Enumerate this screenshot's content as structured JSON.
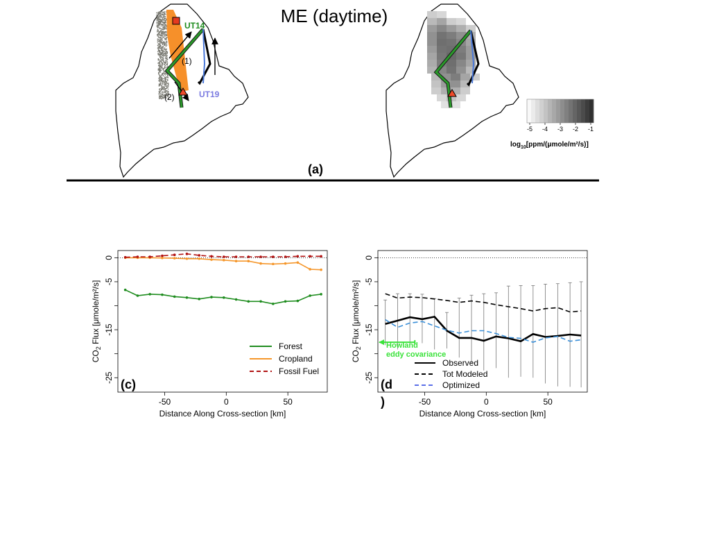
{
  "header": {
    "title": "ME (daytime)",
    "panel_a_label": "(a)"
  },
  "maps": {
    "left_labels": {
      "track1": "UT14",
      "track2": "UT19",
      "arrow1": "(1)",
      "arrow2": "(2)"
    },
    "colorbar": {
      "ticks": [
        "-5",
        "-4",
        "-3",
        "-2",
        "-1"
      ],
      "label": "log10[ppm/(μmole/m²/s)]",
      "label_parts": {
        "pre": "log",
        "sub": "10",
        "post": "[ppm/(μmole/m²/s)]"
      }
    },
    "colors": {
      "forest_track": "#1e8c1e",
      "blue_track": "#4a78d8",
      "cropland": "#f58a1f",
      "scatter": "#7a7a72",
      "marker_square": "#e53a1f",
      "marker_triangle": "#ef4a2a"
    }
  },
  "chart_data": [
    {
      "type": "line",
      "panel": "(c)",
      "xlabel": "Distance Along Cross-section [km]",
      "ylabel": "CO2 Flux [μmole/m²/s]",
      "ylabel_parts": {
        "pre": "CO",
        "sub": "2",
        "post": " Flux [μmole/m²/s]"
      },
      "xlim": [
        -88,
        82
      ],
      "ylim": [
        -28,
        1.5
      ],
      "xticks": [
        -50,
        0,
        50
      ],
      "yticks": [
        0,
        -5,
        -10,
        -15,
        -20,
        -25
      ],
      "ytick_labels": [
        "0",
        "-5",
        "",
        "-15",
        "",
        "-25"
      ],
      "x": [
        -82,
        -72,
        -62,
        -52,
        -42,
        -32,
        -22,
        -12,
        -2,
        8,
        18,
        28,
        38,
        48,
        58,
        68,
        77
      ],
      "series": [
        {
          "name": "Forest",
          "color": "#1e8c1e",
          "dash": "solid",
          "values": [
            -6.7,
            -7.9,
            -7.6,
            -7.7,
            -8.1,
            -8.3,
            -8.6,
            -8.2,
            -8.3,
            -8.7,
            -9.1,
            -9.1,
            -9.6,
            -9.1,
            -9.0,
            -7.9,
            -7.6
          ]
        },
        {
          "name": "Cropland",
          "color": "#f5962a",
          "dash": "solid",
          "values": [
            0.0,
            0.0,
            0.0,
            -0.05,
            -0.1,
            -0.2,
            -0.2,
            -0.4,
            -0.5,
            -0.7,
            -0.7,
            -1.2,
            -1.3,
            -1.2,
            -1.0,
            -2.4,
            -2.5
          ]
        },
        {
          "name": "Fossil Fuel",
          "color": "#b01010",
          "dash": "dashed",
          "values": [
            0.1,
            0.2,
            0.2,
            0.4,
            0.6,
            0.8,
            0.5,
            0.3,
            0.2,
            0.2,
            0.2,
            0.2,
            0.2,
            0.2,
            0.3,
            0.3,
            0.3
          ]
        }
      ]
    },
    {
      "type": "line",
      "panel": "(d",
      "panel_extra": ")",
      "xlabel": "Distance Along Cross-section [km]",
      "ylabel": "CO2 Flux [μmole/m²/s]",
      "ylabel_parts": {
        "pre": "CO",
        "sub": "2",
        "post": " Flux [μmole/m²/s]"
      },
      "xlim": [
        -88,
        82
      ],
      "ylim": [
        -28,
        1.5
      ],
      "xticks": [
        -50,
        0,
        50
      ],
      "yticks": [
        0,
        -5,
        -10,
        -15,
        -20,
        -25
      ],
      "ytick_labels": [
        "0",
        "-5",
        "",
        "-15",
        "",
        "-25"
      ],
      "x": [
        -82,
        -72,
        -62,
        -52,
        -42,
        -32,
        -22,
        -12,
        -2,
        8,
        18,
        28,
        38,
        48,
        58,
        68,
        77
      ],
      "series": [
        {
          "name": "Observed",
          "color": "#000000",
          "dash": "solid",
          "width": 2.6,
          "values": [
            -13.8,
            -13.1,
            -12.4,
            -12.8,
            -12.3,
            -15.2,
            -16.7,
            -16.7,
            -17.3,
            -16.4,
            -16.8,
            -17.4,
            -15.9,
            -16.5,
            -16.3,
            -16.0,
            -16.2
          ]
        },
        {
          "name": "Tot Modeled",
          "color": "#000000",
          "dash": "dashed",
          "width": 1.6,
          "values": [
            -7.5,
            -8.4,
            -8.2,
            -8.3,
            -8.6,
            -8.9,
            -9.3,
            -9.0,
            -9.3,
            -9.8,
            -10.2,
            -10.6,
            -11.1,
            -10.6,
            -10.4,
            -11.3,
            -11.1
          ]
        },
        {
          "name": "Optimized",
          "color": "#3a8fd8",
          "dash": "dashed",
          "width": 1.6,
          "values": [
            -12.9,
            -14.5,
            -13.6,
            -13.3,
            -14.2,
            -15.1,
            -15.7,
            -15.2,
            -15.2,
            -15.8,
            -16.6,
            -16.8,
            -17.6,
            -16.7,
            -16.4,
            -17.4,
            -17.1
          ]
        }
      ],
      "error_bars": {
        "upper": [
          -8.8,
          -7.5,
          -7.5,
          -7.6,
          -8.5,
          -11.4,
          -8.4,
          -7.8,
          -7.5,
          -7.3,
          -5.9,
          -5.8,
          -5.8,
          -5.5,
          -5.4,
          -5.2,
          -5.0
        ],
        "lower": [
          -18.2,
          -19.1,
          -17.9,
          -17.8,
          -19.1,
          -18.9,
          -20.8,
          -22.0,
          -23.5,
          -23.0,
          -25.0,
          -24.8,
          -25.0,
          -26.2,
          -26.8,
          -26.9,
          -27.0
        ]
      },
      "annotation": {
        "text_line1": "Howland",
        "text_line2": "eddy covariance",
        "color": "#3ae23a",
        "value": -17.6,
        "x_from": -58,
        "x_to": -90
      },
      "legend_labels": [
        "Observed",
        "Tot Modeled",
        "Optimized"
      ],
      "legend_colors": [
        "#000000",
        "#000000",
        "#5a6ee8"
      ]
    }
  ]
}
